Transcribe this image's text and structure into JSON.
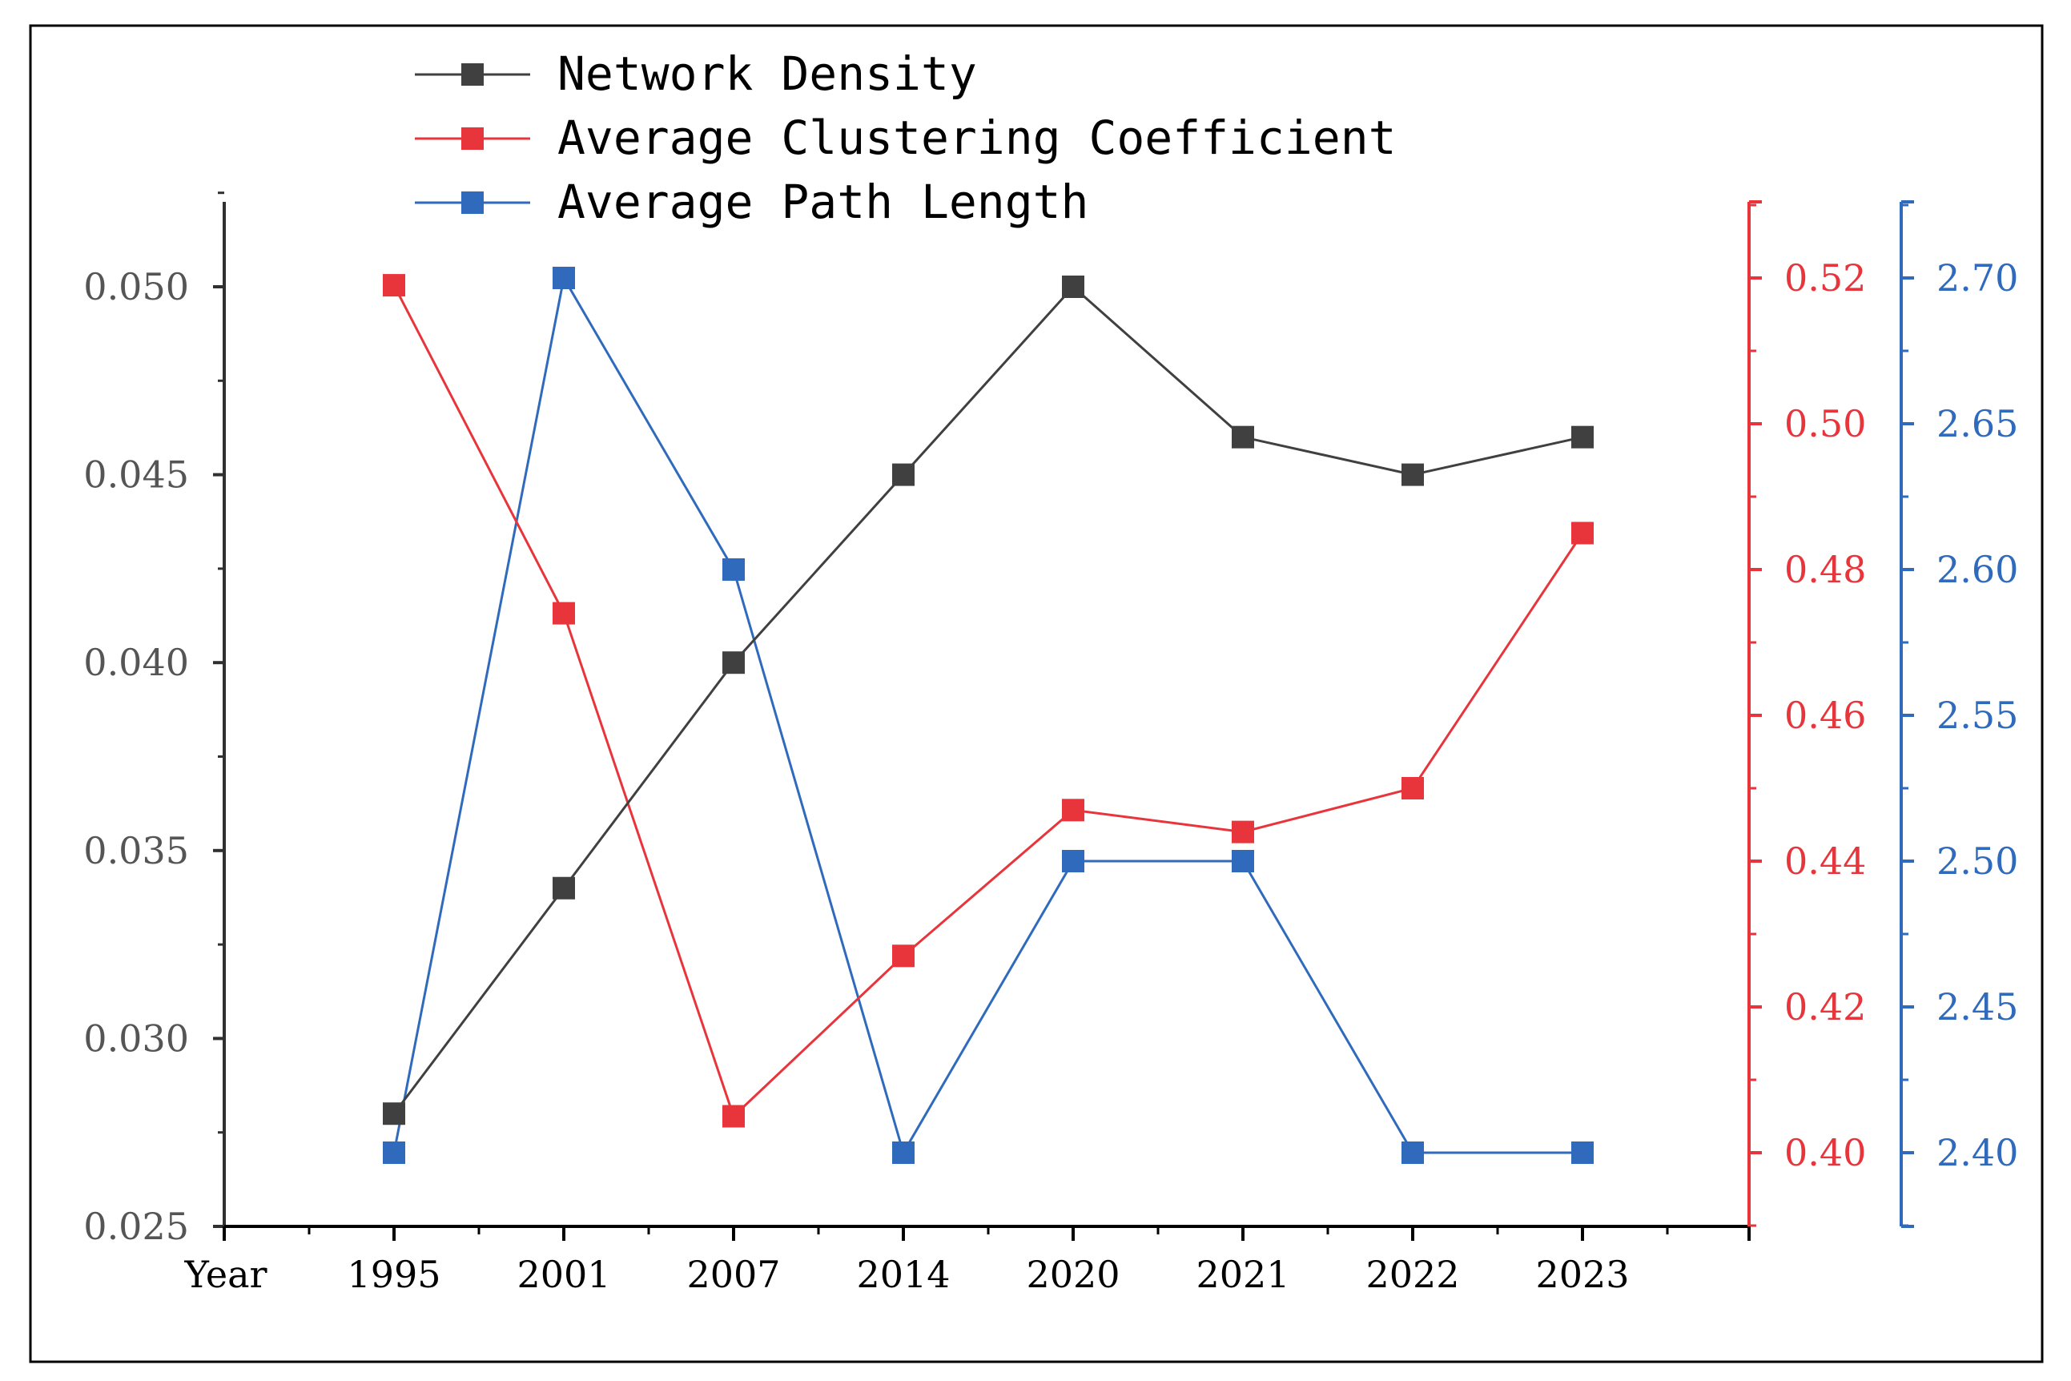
{
  "chart_data": {
    "type": "line",
    "xlabel": "Year",
    "categories": [
      "1995",
      "2001",
      "2007",
      "2014",
      "2020",
      "2021",
      "2022",
      "2023"
    ],
    "colors": {
      "frame": "#000000",
      "density": "#404040",
      "clustering": "#e8353b",
      "path": "#2f6abd"
    },
    "series": [
      {
        "name": "Network Density",
        "axis": "left",
        "values": [
          0.028,
          0.034,
          0.04,
          0.045,
          0.05,
          0.046,
          0.045,
          0.046
        ]
      },
      {
        "name": "Average Clustering Coefficient",
        "axis": "right1",
        "values": [
          0.519,
          0.474,
          0.405,
          0.427,
          0.447,
          0.444,
          0.45,
          0.485
        ]
      },
      {
        "name": "Average Path Length",
        "axis": "right2",
        "values": [
          2.4,
          2.7,
          2.6,
          2.4,
          2.5,
          2.5,
          2.4,
          2.4
        ]
      }
    ],
    "axes": {
      "left": {
        "min": 0.025,
        "max": 0.0525,
        "ticks": [
          0.025,
          0.03,
          0.035,
          0.04,
          0.045,
          0.05
        ],
        "tick_labels": [
          "0.025",
          "0.030",
          "0.035",
          "0.040",
          "0.045",
          "0.050"
        ]
      },
      "right1": {
        "min": 0.39,
        "max": 0.53,
        "ticks": [
          0.4,
          0.42,
          0.44,
          0.46,
          0.48,
          0.5,
          0.52
        ],
        "tick_labels": [
          "0.40",
          "0.42",
          "0.44",
          "0.46",
          "0.48",
          "0.50",
          "0.52"
        ]
      },
      "right2": {
        "min": 2.375,
        "max": 2.725,
        "ticks": [
          2.4,
          2.45,
          2.5,
          2.55,
          2.6,
          2.65,
          2.7
        ],
        "tick_labels": [
          "2.40",
          "2.45",
          "2.50",
          "2.55",
          "2.60",
          "2.65",
          "2.70"
        ]
      }
    },
    "legend": "top-left"
  }
}
